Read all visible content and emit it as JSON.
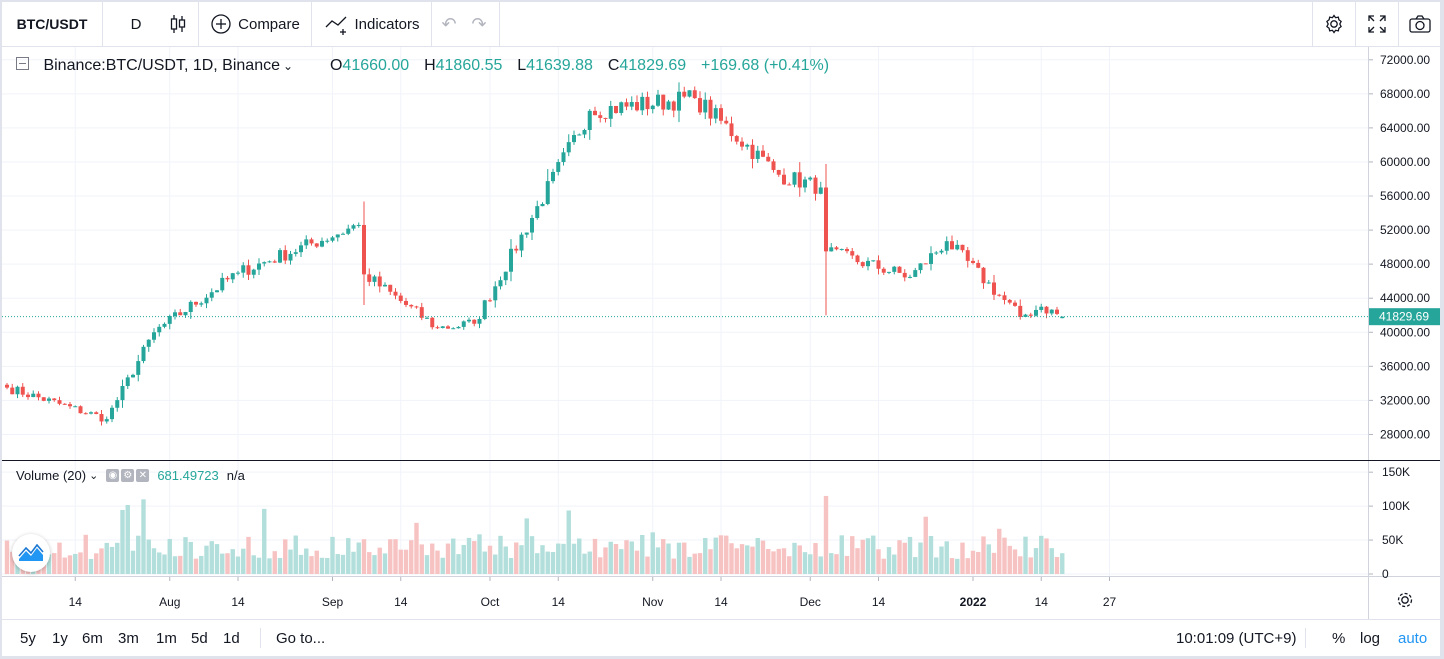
{
  "toolbar": {
    "symbol": "BTC/USDT",
    "interval": "D",
    "compare_label": "Compare",
    "indicators_label": "Indicators"
  },
  "legend": {
    "title": "Binance:BTC/USDT, 1D, Binance",
    "open_prefix": "O",
    "open": "41660.00",
    "high_prefix": "H",
    "high": "41860.55",
    "low_prefix": "L",
    "low": "41639.88",
    "close_prefix": "C",
    "close": "41829.69",
    "change": "+169.68 (+0.41%)"
  },
  "volume_legend": {
    "title": "Volume (20)",
    "value": "681.49723",
    "na": "n/a"
  },
  "price_axis": [
    "72000.00",
    "68000.00",
    "64000.00",
    "60000.00",
    "56000.00",
    "52000.00",
    "48000.00",
    "44000.00",
    "40000.00",
    "36000.00",
    "32000.00",
    "28000.00"
  ],
  "last_price_label": "41829.69",
  "volume_axis": [
    "150K",
    "100K",
    "50K",
    "0"
  ],
  "time_axis": [
    "14",
    "Aug",
    "14",
    "Sep",
    "14",
    "Oct",
    "14",
    "Nov",
    "14",
    "Dec",
    "14",
    "2022",
    "14",
    "27"
  ],
  "bottombar": {
    "ranges": [
      "5y",
      "1y",
      "6m",
      "3m",
      "1m",
      "5d",
      "1d"
    ],
    "goto_label": "Go to...",
    "clock": "10:01:09 (UTC+9)",
    "percent_label": "%",
    "log_label": "log",
    "auto_label": "auto"
  },
  "colors": {
    "up": "#26a69a",
    "down": "#ef5350",
    "up_vol": "#b2dfdb",
    "down_vol": "#f7c2c2",
    "accent": "#2196f3"
  },
  "chart_data": {
    "type": "candlestick",
    "symbol": "Binance:BTC/USDT",
    "interval": "1D",
    "price_range": [
      25000,
      73500
    ],
    "volume_range": [
      0,
      165000
    ],
    "anchors": [
      {
        "label": "Jul 1",
        "close": 33500
      },
      {
        "label": "Jul 20",
        "close": 29800
      },
      {
        "label": "Jul 29",
        "close": 40000
      },
      {
        "label": "Aug 14",
        "close": 47000
      },
      {
        "label": "Sep 6",
        "close": 52600
      },
      {
        "label": "Sep 7",
        "close": 46800
      },
      {
        "label": "Sep 21",
        "close": 40500
      },
      {
        "label": "Sep 28",
        "close": 41000
      },
      {
        "label": "Oct 20",
        "close": 66000
      },
      {
        "label": "Nov 9",
        "close": 67500
      },
      {
        "label": "Nov 25",
        "close": 58500
      },
      {
        "label": "Dec 3",
        "close": 57000
      },
      {
        "label": "Dec 4",
        "close": 49500
      },
      {
        "label": "Dec 20",
        "close": 46500
      },
      {
        "label": "Dec 27",
        "close": 50700
      },
      {
        "label": "Jan 10",
        "close": 41800
      },
      {
        "label": "Jan 14",
        "close": 43000
      },
      {
        "label": "Jan 18",
        "close": 41829.69
      }
    ],
    "last": {
      "open": 41660.0,
      "high": 41860.55,
      "low": 41639.88,
      "close": 41829.69
    },
    "volume_typical": 40000,
    "volume_peaks": [
      {
        "label": "Jul 27",
        "value": 110000
      },
      {
        "label": "Dec 4",
        "value": 115000
      }
    ]
  }
}
